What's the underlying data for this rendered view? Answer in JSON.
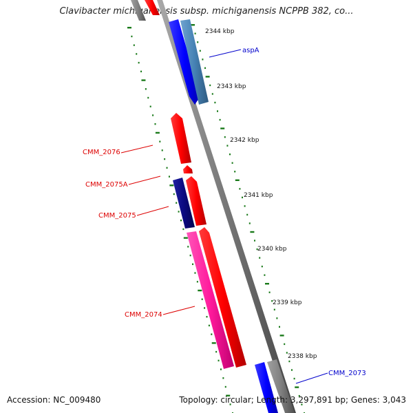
{
  "title": "Clavibacter michiganensis subsp. michiganensis NCPPB 382, co...",
  "footer": {
    "accession": "Accession: NC_009480",
    "summary": "Topology: circular; Length: 3,297,891 bp; Genes: 3,043"
  },
  "ticks": [
    "2344 kbp",
    "2343 kbp",
    "2342 kbp",
    "2341 kbp",
    "2340 kbp",
    "2339 kbp",
    "2338 kbp"
  ],
  "features": [
    {
      "label": "aspA",
      "color": "#0000cc"
    },
    {
      "label": "CMM_2076",
      "color": "#dd0000"
    },
    {
      "label": "CMM_2075A",
      "color": "#dd0000"
    },
    {
      "label": "CMM_2075",
      "color": "#dd0000"
    },
    {
      "label": "CMM_2074",
      "color": "#dd0000"
    },
    {
      "label": "CMM_2073",
      "color": "#0000cc"
    }
  ],
  "colors": {
    "backbone": "#7a7a7a",
    "tick_marks": "#1a7a1a",
    "gene_red": "#ff0000",
    "gene_blue": "#0000ff",
    "gene_steelblue": "#4682b4",
    "gene_navy": "#0a0a80",
    "gene_pink": "#ff1a9c",
    "gene_gray": "#808080"
  }
}
